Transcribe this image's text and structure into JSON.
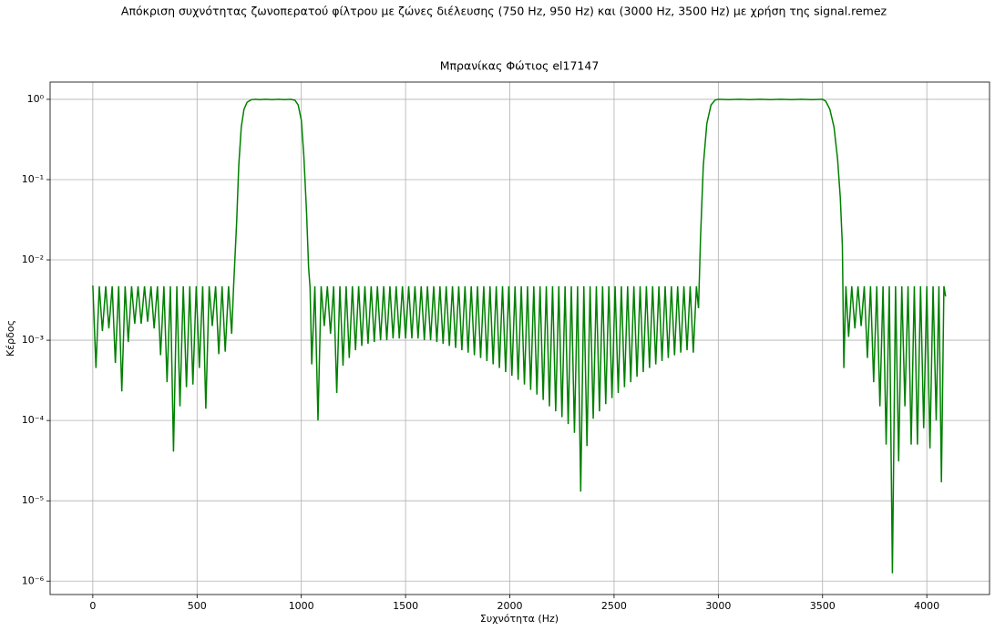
{
  "chart_data": {
    "type": "line",
    "suptitle": "Απόκριση συχνότητας ζωνοπερατού φίλτρου με ζώνες διέλευσης (750 Hz, 950 Hz) και (3000 Hz, 3500 Hz) με χρήση της signal.remez",
    "title": "Μπρανίκας Φώτιος el17147",
    "xlabel": "Συχνότητα (Hz)",
    "ylabel": "Κέρδος",
    "color": "#008000",
    "grid": true,
    "log_y": true,
    "xlim": [
      -204.8,
      4300.8
    ],
    "ylim": [
      6.8e-07,
      1.64
    ],
    "xticks": [
      0,
      500,
      1000,
      1500,
      2000,
      2500,
      3000,
      3500,
      4000
    ],
    "yticks": [
      {
        "value": 1,
        "label": "10⁰"
      },
      {
        "value": 0.1,
        "label": "10⁻¹"
      },
      {
        "value": 0.01,
        "label": "10⁻²"
      },
      {
        "value": 0.001,
        "label": "10⁻³"
      },
      {
        "value": 0.0001,
        "label": "10⁻⁴"
      },
      {
        "value": 1e-05,
        "label": "10⁻⁵"
      },
      {
        "value": 1e-06,
        "label": "10⁻⁶"
      }
    ],
    "x": [
      0,
      15,
      31,
      46,
      62,
      77,
      93,
      108,
      124,
      139,
      155,
      170,
      186,
      201,
      217,
      232,
      248,
      263,
      279,
      294,
      310,
      325,
      341,
      356,
      372,
      387,
      403,
      418,
      434,
      449,
      465,
      480,
      496,
      511,
      527,
      542,
      558,
      573,
      589,
      604,
      620,
      635,
      651,
      666,
      675,
      690,
      700,
      712,
      725,
      740,
      760,
      780,
      800,
      830,
      860,
      890,
      920,
      950,
      970,
      985,
      1000,
      1012,
      1025,
      1035,
      1042,
      1050,
      1065,
      1080,
      1095,
      1110,
      1125,
      1140,
      1155,
      1170,
      1185,
      1200,
      1215,
      1230,
      1245,
      1260,
      1275,
      1290,
      1305,
      1320,
      1335,
      1350,
      1365,
      1380,
      1395,
      1410,
      1425,
      1440,
      1455,
      1470,
      1485,
      1500,
      1515,
      1530,
      1545,
      1560,
      1575,
      1590,
      1605,
      1620,
      1635,
      1650,
      1665,
      1680,
      1695,
      1710,
      1725,
      1740,
      1755,
      1770,
      1785,
      1800,
      1815,
      1830,
      1845,
      1860,
      1875,
      1890,
      1905,
      1920,
      1935,
      1950,
      1965,
      1980,
      1995,
      2010,
      2025,
      2040,
      2055,
      2070,
      2085,
      2100,
      2115,
      2130,
      2145,
      2160,
      2175,
      2190,
      2205,
      2220,
      2235,
      2250,
      2265,
      2280,
      2295,
      2310,
      2325,
      2340,
      2355,
      2370,
      2385,
      2400,
      2415,
      2430,
      2445,
      2460,
      2475,
      2490,
      2505,
      2520,
      2535,
      2550,
      2565,
      2580,
      2595,
      2610,
      2625,
      2640,
      2655,
      2670,
      2685,
      2700,
      2715,
      2730,
      2745,
      2760,
      2775,
      2790,
      2805,
      2820,
      2835,
      2850,
      2865,
      2880,
      2895,
      2905,
      2915,
      2928,
      2945,
      2965,
      2985,
      3000,
      3050,
      3100,
      3150,
      3200,
      3250,
      3300,
      3350,
      3400,
      3450,
      3500,
      3515,
      3535,
      3555,
      3572,
      3585,
      3595,
      3602,
      3612,
      3625,
      3640,
      3655,
      3670,
      3685,
      3700,
      3715,
      3730,
      3745,
      3760,
      3775,
      3790,
      3805,
      3820,
      3835,
      3850,
      3865,
      3880,
      3895,
      3910,
      3925,
      3940,
      3955,
      3970,
      3985,
      4000,
      4015,
      4030,
      4045,
      4058,
      4070,
      4082,
      4090
    ],
    "values": [
      0.0048,
      0.00045,
      0.0047,
      0.0013,
      0.0047,
      0.0014,
      0.0047,
      0.00052,
      0.0047,
      0.00023,
      0.0047,
      0.00095,
      0.0047,
      0.0016,
      0.0047,
      0.0016,
      0.0047,
      0.0017,
      0.0047,
      0.0014,
      0.0047,
      0.00065,
      0.0047,
      0.0003,
      0.0047,
      4.1e-05,
      0.0047,
      0.00015,
      0.0047,
      0.00026,
      0.0047,
      0.00028,
      0.0047,
      0.00045,
      0.0047,
      0.00014,
      0.0047,
      0.0015,
      0.0047,
      0.00067,
      0.0047,
      0.00072,
      0.0047,
      0.0012,
      0.0045,
      0.03,
      0.15,
      0.45,
      0.75,
      0.92,
      0.99,
      1.0,
      0.99,
      1.0,
      0.99,
      1.0,
      0.99,
      1.0,
      0.97,
      0.85,
      0.55,
      0.2,
      0.04,
      0.008,
      0.0045,
      0.0005,
      0.0047,
      0.0001,
      0.0047,
      0.0015,
      0.0047,
      0.0012,
      0.0047,
      0.00022,
      0.0047,
      0.00048,
      0.0047,
      0.0006,
      0.0047,
      0.00075,
      0.0047,
      0.00085,
      0.0047,
      0.0009,
      0.0047,
      0.00095,
      0.0047,
      0.001,
      0.0047,
      0.001,
      0.0047,
      0.00105,
      0.0047,
      0.00105,
      0.0047,
      0.00105,
      0.0047,
      0.00105,
      0.0047,
      0.00105,
      0.0047,
      0.001,
      0.0047,
      0.001,
      0.0047,
      0.00095,
      0.0047,
      0.0009,
      0.0047,
      0.00085,
      0.0047,
      0.0008,
      0.0047,
      0.00075,
      0.0047,
      0.0007,
      0.0047,
      0.00065,
      0.0047,
      0.0006,
      0.0047,
      0.00055,
      0.0047,
      0.0005,
      0.0047,
      0.00045,
      0.0047,
      0.0004,
      0.0047,
      0.00036,
      0.0047,
      0.00032,
      0.0047,
      0.00028,
      0.0047,
      0.00024,
      0.0047,
      0.00021,
      0.0047,
      0.00018,
      0.0047,
      0.00015,
      0.0047,
      0.00013,
      0.0047,
      0.00011,
      0.0047,
      9e-05,
      0.0047,
      7e-05,
      0.0047,
      1.3e-05,
      0.0047,
      4.8e-05,
      0.0047,
      0.000105,
      0.0047,
      0.00013,
      0.0047,
      0.00016,
      0.0047,
      0.00019,
      0.0047,
      0.00022,
      0.0047,
      0.00026,
      0.0047,
      0.0003,
      0.0047,
      0.00035,
      0.0047,
      0.0004,
      0.0047,
      0.00045,
      0.0047,
      0.0005,
      0.0047,
      0.00055,
      0.0047,
      0.0006,
      0.0047,
      0.00065,
      0.0047,
      0.0007,
      0.0047,
      0.00075,
      0.0047,
      0.0007,
      0.0047,
      0.0025,
      0.02,
      0.15,
      0.5,
      0.85,
      0.98,
      1.0,
      0.99,
      1.0,
      0.99,
      1.0,
      0.99,
      1.0,
      0.99,
      1.0,
      0.99,
      1.0,
      0.95,
      0.75,
      0.45,
      0.18,
      0.06,
      0.015,
      0.00045,
      0.0047,
      0.0011,
      0.0047,
      0.0014,
      0.0047,
      0.0015,
      0.0047,
      0.0006,
      0.0047,
      0.0003,
      0.0047,
      0.00015,
      0.0047,
      5e-05,
      0.0047,
      1.25e-06,
      0.0047,
      3.1e-05,
      0.0047,
      0.00015,
      0.0047,
      5e-05,
      0.0047,
      5e-05,
      0.0047,
      8e-05,
      0.0047,
      4.5e-05,
      0.0047,
      0.0001,
      0.0047,
      1.7e-05,
      0.0047,
      0.0035
    ]
  }
}
